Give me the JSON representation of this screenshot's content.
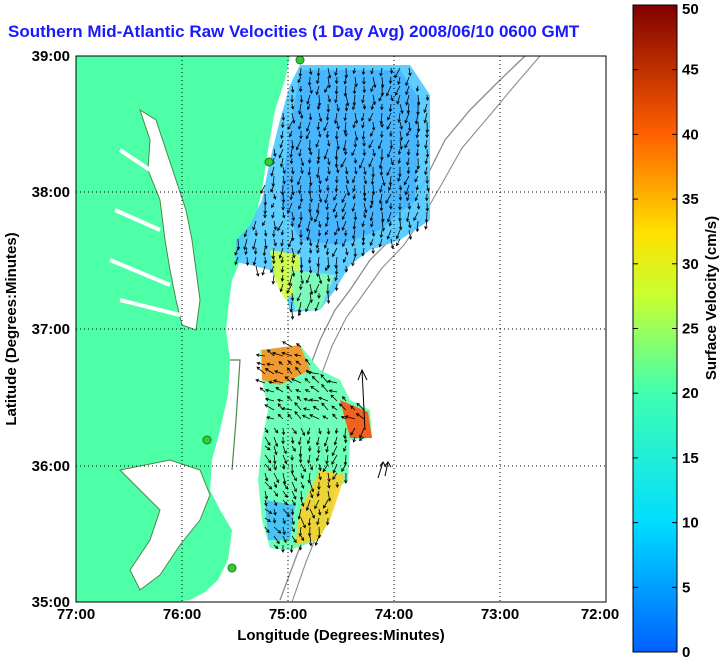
{
  "title": "Southern Mid-Atlantic Raw Velocities (1 Day Avg) 2008/06/10 0600 GMT",
  "x_axis": {
    "label": "Longitude (Degrees:Minutes)",
    "ticks": [
      "77:00",
      "76:00",
      "75:00",
      "74:00",
      "73:00",
      "72:00"
    ]
  },
  "y_axis": {
    "label": "Latitude (Degrees:Minutes)",
    "ticks": [
      "39:00",
      "38:00",
      "37:00",
      "36:00",
      "35:00"
    ]
  },
  "colorbar": {
    "label": "Surface Velocity (cm/s)",
    "ticks": [
      "50",
      "45",
      "40",
      "35",
      "30",
      "25",
      "20",
      "15",
      "10",
      "5",
      "0"
    ],
    "min": 0,
    "max": 50
  },
  "map": {
    "lon_range": [
      -77,
      -72
    ],
    "lat_range": [
      35,
      39
    ],
    "grid": "dotted",
    "land_color": "#4dffa6",
    "water_color": "#ffffff"
  },
  "colors": {
    "title": "#1a1aff",
    "land": "#4dffa6",
    "coast_outline": "#4a8a4a",
    "bathymetry": "#8c8c8c",
    "station": "#33cc33"
  }
}
